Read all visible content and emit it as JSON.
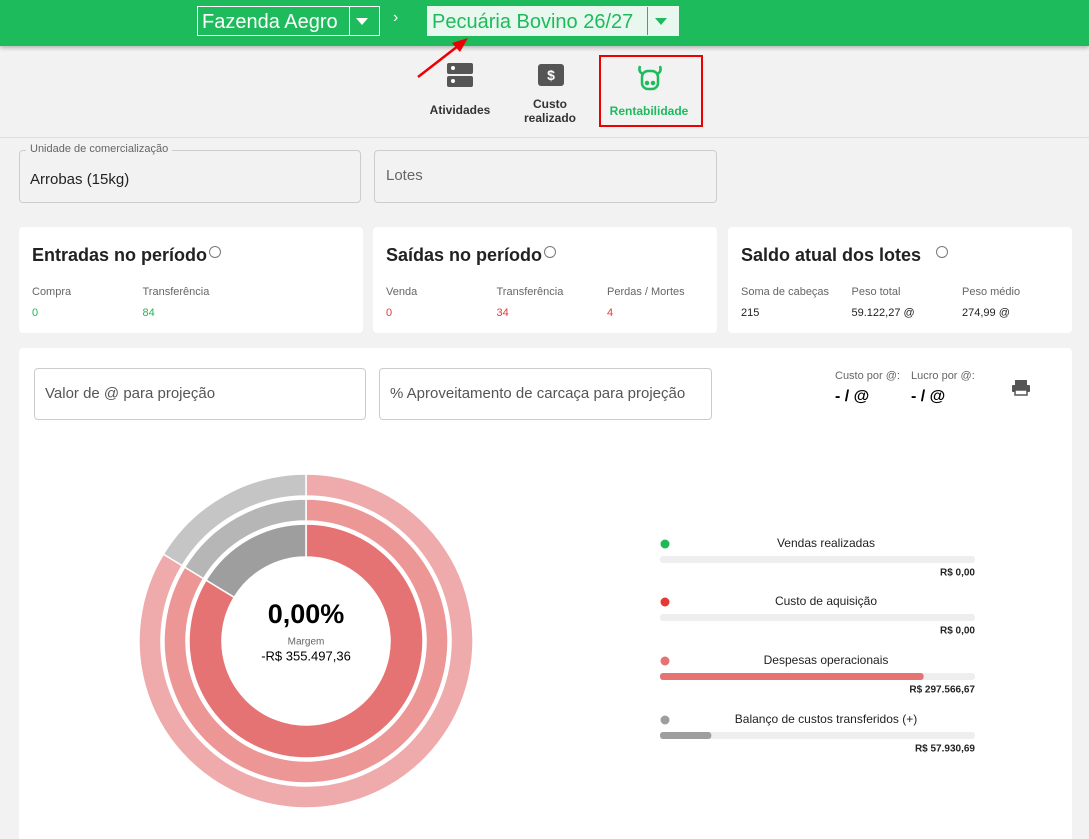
{
  "header": {
    "farm": "Fazenda Aegro",
    "activity": "Pecuária Bovino 26/27"
  },
  "tabs": [
    {
      "label": "Atividades"
    },
    {
      "label": "Custo realizado"
    },
    {
      "label": "Rentabilidade"
    }
  ],
  "filters": {
    "unit_label": "Unidade de comercialização",
    "unit_value": "Arrobas (15kg)",
    "lots_placeholder": "Lotes"
  },
  "cards": [
    {
      "title": "Entradas no período",
      "fields": [
        {
          "label": "Compra",
          "value": 0,
          "color": "#1db954"
        },
        {
          "label": "Transferência",
          "value": 84,
          "color": "#1db954"
        }
      ]
    },
    {
      "title": "Saídas no período",
      "fields": [
        {
          "label": "Venda",
          "value": 0,
          "color": "#e53935"
        },
        {
          "label": "Transferência",
          "value": 34,
          "color": "#e53935"
        },
        {
          "label": "Perdas / Mortes",
          "value": 4,
          "color": "#e53935"
        }
      ]
    },
    {
      "title": "Saldo atual dos lotes",
      "fields": [
        {
          "label": "Soma de cabeças",
          "value": 215,
          "color": "#222222"
        },
        {
          "label": "Peso total",
          "value": "59.122,27 @",
          "color": "#222222"
        },
        {
          "label": "Peso médio",
          "value": "274,99 @",
          "color": "#222222"
        }
      ]
    }
  ],
  "projection": {
    "arroba_placeholder": "Valor de @ para projeção",
    "carcass_placeholder": "% Aproveitamento de carcaça para projeção",
    "cost_label": "Custo por @:",
    "cost_value": "- / @",
    "profit_label": "Lucro por @:",
    "profit_value": "- / @"
  },
  "summary": {
    "margin": "0,00%",
    "margin_label": "Margem",
    "result": "-R$ 355.497,36"
  },
  "legend": [
    {
      "name": "Vendas realizadas",
      "color": "#1db954",
      "value": 0,
      "label": "R$ 0,00"
    },
    {
      "name": "Custo de aquisição",
      "color": "#e53935",
      "value": 0,
      "label": "R$ 0,00"
    },
    {
      "name": "Despesas operacionais",
      "color": "#e57373",
      "value": 297566.67,
      "label": "R$ 297.566,67"
    },
    {
      "name": "Balanço de custos transferidos (+)",
      "color": "#9e9e9e",
      "value": 57930.69,
      "label": "R$ 57.930,69"
    }
  ]
}
